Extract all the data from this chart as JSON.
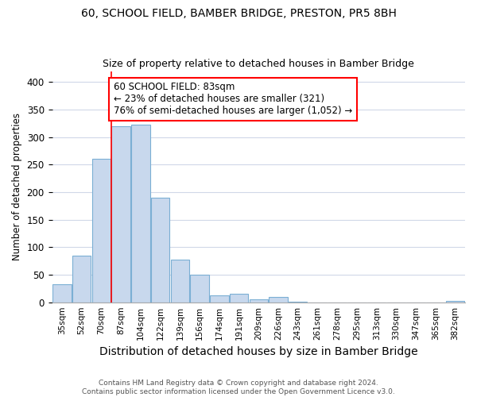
{
  "title": "60, SCHOOL FIELD, BAMBER BRIDGE, PRESTON, PR5 8BH",
  "subtitle": "Size of property relative to detached houses in Bamber Bridge",
  "xlabel": "Distribution of detached houses by size in Bamber Bridge",
  "ylabel": "Number of detached properties",
  "footer_line1": "Contains HM Land Registry data © Crown copyright and database right 2024.",
  "footer_line2": "Contains public sector information licensed under the Open Government Licence v3.0.",
  "categories": [
    "35sqm",
    "52sqm",
    "70sqm",
    "87sqm",
    "104sqm",
    "122sqm",
    "139sqm",
    "156sqm",
    "174sqm",
    "191sqm",
    "209sqm",
    "226sqm",
    "243sqm",
    "261sqm",
    "278sqm",
    "295sqm",
    "313sqm",
    "330sqm",
    "347sqm",
    "365sqm",
    "382sqm"
  ],
  "values": [
    33,
    85,
    260,
    320,
    322,
    190,
    78,
    50,
    13,
    15,
    5,
    9,
    1,
    0,
    0,
    0,
    0,
    0,
    0,
    0,
    2
  ],
  "bar_color": "#c8d8ed",
  "bar_edge_color": "#7bafd4",
  "grid_color": "#d0d8e8",
  "background_color": "#ffffff",
  "annotation_line1": "60 SCHOOL FIELD: 83sqm",
  "annotation_line2": "← 23% of detached houses are smaller (321)",
  "annotation_line3": "76% of semi-detached houses are larger (1,052) →",
  "annotation_box_color": "white",
  "annotation_border_color": "red",
  "ylim": [
    0,
    420
  ],
  "yticks": [
    0,
    50,
    100,
    150,
    200,
    250,
    300,
    350,
    400
  ],
  "title_fontsize": 10,
  "subtitle_fontsize": 9,
  "xlabel_fontsize": 10,
  "ylabel_fontsize": 8.5
}
